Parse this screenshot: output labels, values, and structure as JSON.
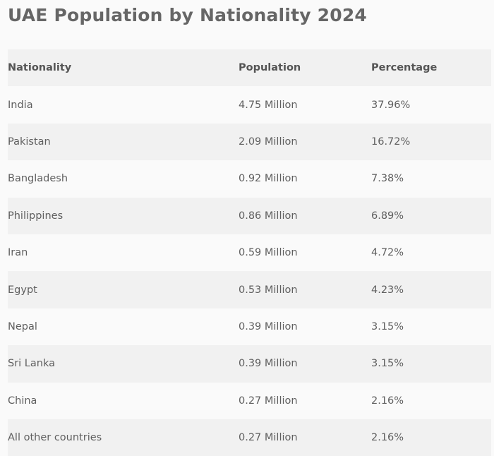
{
  "title": "UAE Population by Nationality 2024",
  "table": {
    "headers": [
      "Nationality",
      "Population",
      "Percentage"
    ],
    "rows": [
      [
        "India",
        "4.75 Million",
        "37.96%"
      ],
      [
        "Pakistan",
        "2.09 Million",
        "16.72%"
      ],
      [
        "Bangladesh",
        "0.92 Million",
        "7.38%"
      ],
      [
        "Philippines",
        "0.86 Million",
        "6.89%"
      ],
      [
        "Iran",
        "0.59 Million",
        "4.72%"
      ],
      [
        "Egypt",
        "0.53 Million",
        "4.23%"
      ],
      [
        "Nepal",
        "0.39 Million",
        "3.15%"
      ],
      [
        "Sri Lanka",
        "0.39 Million",
        "3.15%"
      ],
      [
        "China",
        "0.27 Million",
        "2.16%"
      ],
      [
        "All other countries",
        "0.27 Million",
        "2.16%"
      ]
    ]
  },
  "colors": {
    "background": "#fafafa",
    "row_shade": "#f1f1f1",
    "title": "#666666",
    "text": "#5f5f5f"
  }
}
